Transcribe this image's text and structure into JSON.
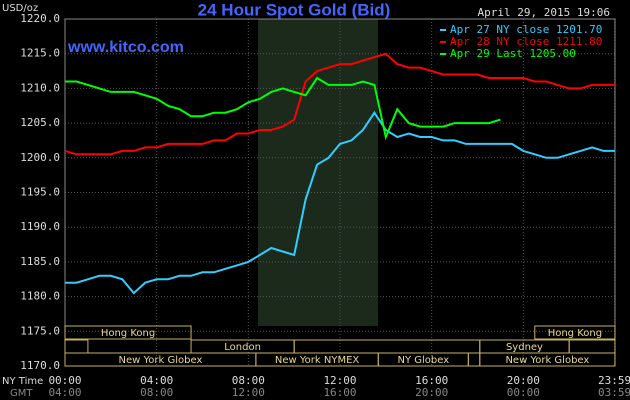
{
  "chart_data": {
    "type": "line",
    "title": "24 Hour Spot Gold (Bid)",
    "timestamp": "April 29, 2015 19:06",
    "y_unit": "USD/oz",
    "watermark": "www.kitco.com",
    "x_axis_label": "NY Time",
    "x2_axis_label": "GMT",
    "x": [
      0,
      0.5,
      1,
      1.5,
      2,
      2.5,
      3,
      3.5,
      4,
      4.5,
      5,
      5.5,
      6,
      6.5,
      7,
      7.5,
      8,
      8.5,
      9,
      9.5,
      10,
      10.5,
      11,
      11.5,
      12,
      12.5,
      13,
      13.5,
      14,
      14.5,
      15,
      15.5,
      16,
      16.5,
      17,
      17.5,
      18,
      18.5,
      19,
      19.5,
      20,
      20.5,
      21,
      21.5,
      22,
      22.5,
      23,
      23.5,
      24
    ],
    "series": [
      {
        "name": "Apr 27 NY close 1201.70",
        "color": "#33ccff",
        "values": [
          1182,
          1182,
          1182.5,
          1183,
          1183,
          1182.5,
          1180.5,
          1182,
          1182.5,
          1182.5,
          1183,
          1183,
          1183.5,
          1183.5,
          1184,
          1184.5,
          1185,
          1186,
          1187,
          1186.5,
          1186,
          1194,
          1199,
          1200,
          1202,
          1202.5,
          1204,
          1206.5,
          1204,
          1203,
          1203.5,
          1203,
          1203,
          1202.5,
          1202.5,
          1202,
          1202,
          1202,
          1202,
          1202,
          1201,
          1200.5,
          1200,
          1200,
          1200.5,
          1201,
          1201.5,
          1201,
          1201
        ]
      },
      {
        "name": "Apr 28 NY close 1211.80",
        "color": "#ff0000",
        "values": [
          1201,
          1200.5,
          1200.5,
          1200.5,
          1200.5,
          1201,
          1201,
          1201.5,
          1201.5,
          1202,
          1202,
          1202,
          1202,
          1202.5,
          1202.5,
          1203.5,
          1203.5,
          1204,
          1204,
          1204.5,
          1205.5,
          1211,
          1212.5,
          1213,
          1213.5,
          1213.5,
          1214,
          1214.5,
          1215,
          1213.5,
          1213,
          1213,
          1212.5,
          1212,
          1212,
          1212,
          1212,
          1211.5,
          1211.5,
          1211.5,
          1211.5,
          1211,
          1211,
          1210.5,
          1210,
          1210,
          1210.5,
          1210.5,
          1210.5
        ]
      },
      {
        "name": "Apr 29 Last 1205.00",
        "color": "#00ff00",
        "values": [
          1211,
          1211,
          1210.5,
          1210,
          1209.5,
          1209.5,
          1209.5,
          1209,
          1208.5,
          1207.5,
          1207,
          1206,
          1206,
          1206.5,
          1206.5,
          1207,
          1208,
          1208.5,
          1209.5,
          1210,
          1209.5,
          1209,
          1211.5,
          1210.5,
          1210.5,
          1210.5,
          1211,
          1210.5,
          1203,
          1207,
          1205,
          1204.5,
          1204.5,
          1204.5,
          1205,
          1205,
          1205,
          1205,
          1205.5,
          null,
          null,
          null,
          null,
          null,
          null,
          null,
          null,
          null,
          null
        ]
      }
    ],
    "xlim": [
      0,
      24
    ],
    "xticks": [
      {
        "value": 0,
        "label": "00:00"
      },
      {
        "value": 4,
        "label": "04:00"
      },
      {
        "value": 8,
        "label": "08:00"
      },
      {
        "value": 12,
        "label": "12:00"
      },
      {
        "value": 16,
        "label": "16:00"
      },
      {
        "value": 20,
        "label": "20:00"
      },
      {
        "value": 23.983,
        "label": "23:59"
      }
    ],
    "x2ticks": [
      "04:00",
      "08:00",
      "12:00",
      "16:00",
      "20:00",
      "00:00",
      "03:59"
    ],
    "ylim": [
      1170,
      1220
    ],
    "yticks": [
      {
        "value": 1170,
        "label": "1170.0"
      },
      {
        "value": 1175,
        "label": "1175.0"
      },
      {
        "value": 1180,
        "label": "1180.0"
      },
      {
        "value": 1185,
        "label": "1185.0"
      },
      {
        "value": 1190,
        "label": "1190.0"
      },
      {
        "value": 1195,
        "label": "1195.0"
      },
      {
        "value": 1200,
        "label": "1200.0"
      },
      {
        "value": 1205,
        "label": "1205.0"
      },
      {
        "value": 1210,
        "label": "1210.0"
      },
      {
        "value": 1215,
        "label": "1215.0"
      },
      {
        "value": 1220,
        "label": "1220.0"
      }
    ],
    "grid": true,
    "sessions": [
      "Hong Kong",
      "London",
      "New York Globex",
      "New York NYMEX",
      "NY Globex",
      "Sydney",
      "Hong Kong",
      "New York Globex"
    ]
  }
}
